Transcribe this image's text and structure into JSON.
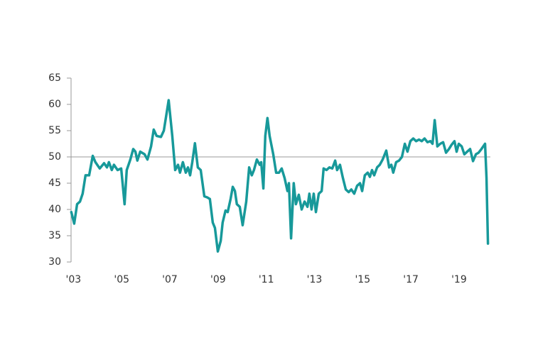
{
  "chart_data": {
    "type": "line",
    "x": [
      2002.91,
      2003.03,
      2003.15,
      2003.27,
      2003.38,
      2003.5,
      2003.65,
      2003.8,
      2003.91,
      2004.09,
      2004.27,
      2004.39,
      2004.47,
      2004.59,
      2004.68,
      2004.83,
      2004.98,
      2005.12,
      2005.21,
      2005.36,
      2005.48,
      2005.57,
      2005.65,
      2005.77,
      2005.95,
      2006.07,
      2006.22,
      2006.33,
      2006.45,
      2006.63,
      2006.75,
      2006.95,
      2007.1,
      2007.22,
      2007.34,
      2007.42,
      2007.54,
      2007.66,
      2007.75,
      2007.84,
      2007.93,
      2008.04,
      2008.16,
      2008.28,
      2008.43,
      2008.55,
      2008.66,
      2008.78,
      2008.87,
      2008.99,
      2009.11,
      2009.19,
      2009.31,
      2009.4,
      2009.52,
      2009.61,
      2009.7,
      2009.78,
      2009.9,
      2010.02,
      2010.17,
      2010.29,
      2010.4,
      2010.49,
      2010.61,
      2010.73,
      2010.79,
      2010.88,
      2010.96,
      2011.05,
      2011.14,
      2011.29,
      2011.41,
      2011.53,
      2011.64,
      2011.76,
      2011.88,
      2011.94,
      2012.03,
      2012.14,
      2012.23,
      2012.35,
      2012.47,
      2012.59,
      2012.71,
      2012.79,
      2012.88,
      2012.97,
      2013.06,
      2013.18,
      2013.3,
      2013.38,
      2013.5,
      2013.62,
      2013.74,
      2013.86,
      2013.94,
      2014.06,
      2014.18,
      2014.3,
      2014.42,
      2014.53,
      2014.65,
      2014.77,
      2014.89,
      2014.98,
      2015.09,
      2015.21,
      2015.3,
      2015.39,
      2015.48,
      2015.6,
      2015.71,
      2015.83,
      2015.98,
      2016.1,
      2016.19,
      2016.27,
      2016.39,
      2016.51,
      2016.63,
      2016.75,
      2016.86,
      2016.98,
      2017.1,
      2017.22,
      2017.34,
      2017.45,
      2017.57,
      2017.69,
      2017.81,
      2017.9,
      2017.99,
      2018.1,
      2018.22,
      2018.34,
      2018.46,
      2018.58,
      2018.69,
      2018.81,
      2018.9,
      2018.99,
      2019.11,
      2019.22,
      2019.34,
      2019.46,
      2019.58,
      2019.7,
      2019.81,
      2019.93,
      2020.08,
      2020.14,
      2020.2
    ],
    "series": [
      {
        "color": "#17999a",
        "values": [
          39.5,
          37.3,
          41,
          41.5,
          43,
          46.5,
          46.5,
          50.2,
          49,
          47.8,
          48.8,
          48,
          49,
          47.5,
          48.5,
          47.5,
          47.8,
          41,
          47.5,
          49.5,
          51.5,
          51,
          49.3,
          51,
          50.5,
          49.5,
          52,
          55.2,
          54,
          53.8,
          55,
          60.8,
          54,
          47.5,
          48.5,
          47,
          49,
          47,
          48,
          46.5,
          49,
          52.6,
          48,
          47.5,
          42.5,
          42.3,
          42,
          37.5,
          36.5,
          32,
          34,
          37.5,
          39.8,
          39.5,
          42,
          44.3,
          43.5,
          41,
          40.5,
          37,
          41.5,
          48,
          46.5,
          47.5,
          49.5,
          48.5,
          49,
          44,
          54,
          57.4,
          54,
          50.5,
          47,
          47,
          47.8,
          46,
          43.5,
          45,
          34.5,
          45,
          41,
          42.8,
          40,
          41.5,
          40.5,
          43,
          40,
          43,
          39.5,
          43,
          43.5,
          47.8,
          47.5,
          48,
          47.8,
          49.3,
          47.5,
          48.5,
          46,
          43.8,
          43.3,
          43.8,
          43,
          44.5,
          45,
          43.5,
          46.5,
          47,
          46.2,
          47.5,
          46.5,
          48,
          48.5,
          49.5,
          51.2,
          48,
          48.5,
          47,
          49,
          49.3,
          50,
          52.5,
          51,
          53,
          53.5,
          53,
          53.3,
          53,
          53.5,
          52.8,
          53,
          52.5,
          57,
          52,
          52.5,
          52.8,
          50.8,
          51.5,
          52.3,
          53,
          51,
          52.5,
          52,
          50.5,
          51,
          51.5,
          49.2,
          50.5,
          50.8,
          51.5,
          52.5,
          46,
          33.5
        ]
      }
    ],
    "xlim": [
      2002.9,
      2020.3
    ],
    "xticks": [
      {
        "value": 2003,
        "label": "'03"
      },
      {
        "value": 2005,
        "label": "'05"
      },
      {
        "value": 2007,
        "label": "'07"
      },
      {
        "value": 2009,
        "label": "'09"
      },
      {
        "value": 2011,
        "label": "'11"
      },
      {
        "value": 2013,
        "label": "'13"
      },
      {
        "value": 2015,
        "label": "'15"
      },
      {
        "value": 2017,
        "label": "'17"
      },
      {
        "value": 2019,
        "label": "'19"
      }
    ],
    "ylim": [
      30,
      65
    ],
    "yticks": [
      30,
      35,
      40,
      45,
      50,
      55,
      60,
      65
    ],
    "reference_line": 50
  }
}
